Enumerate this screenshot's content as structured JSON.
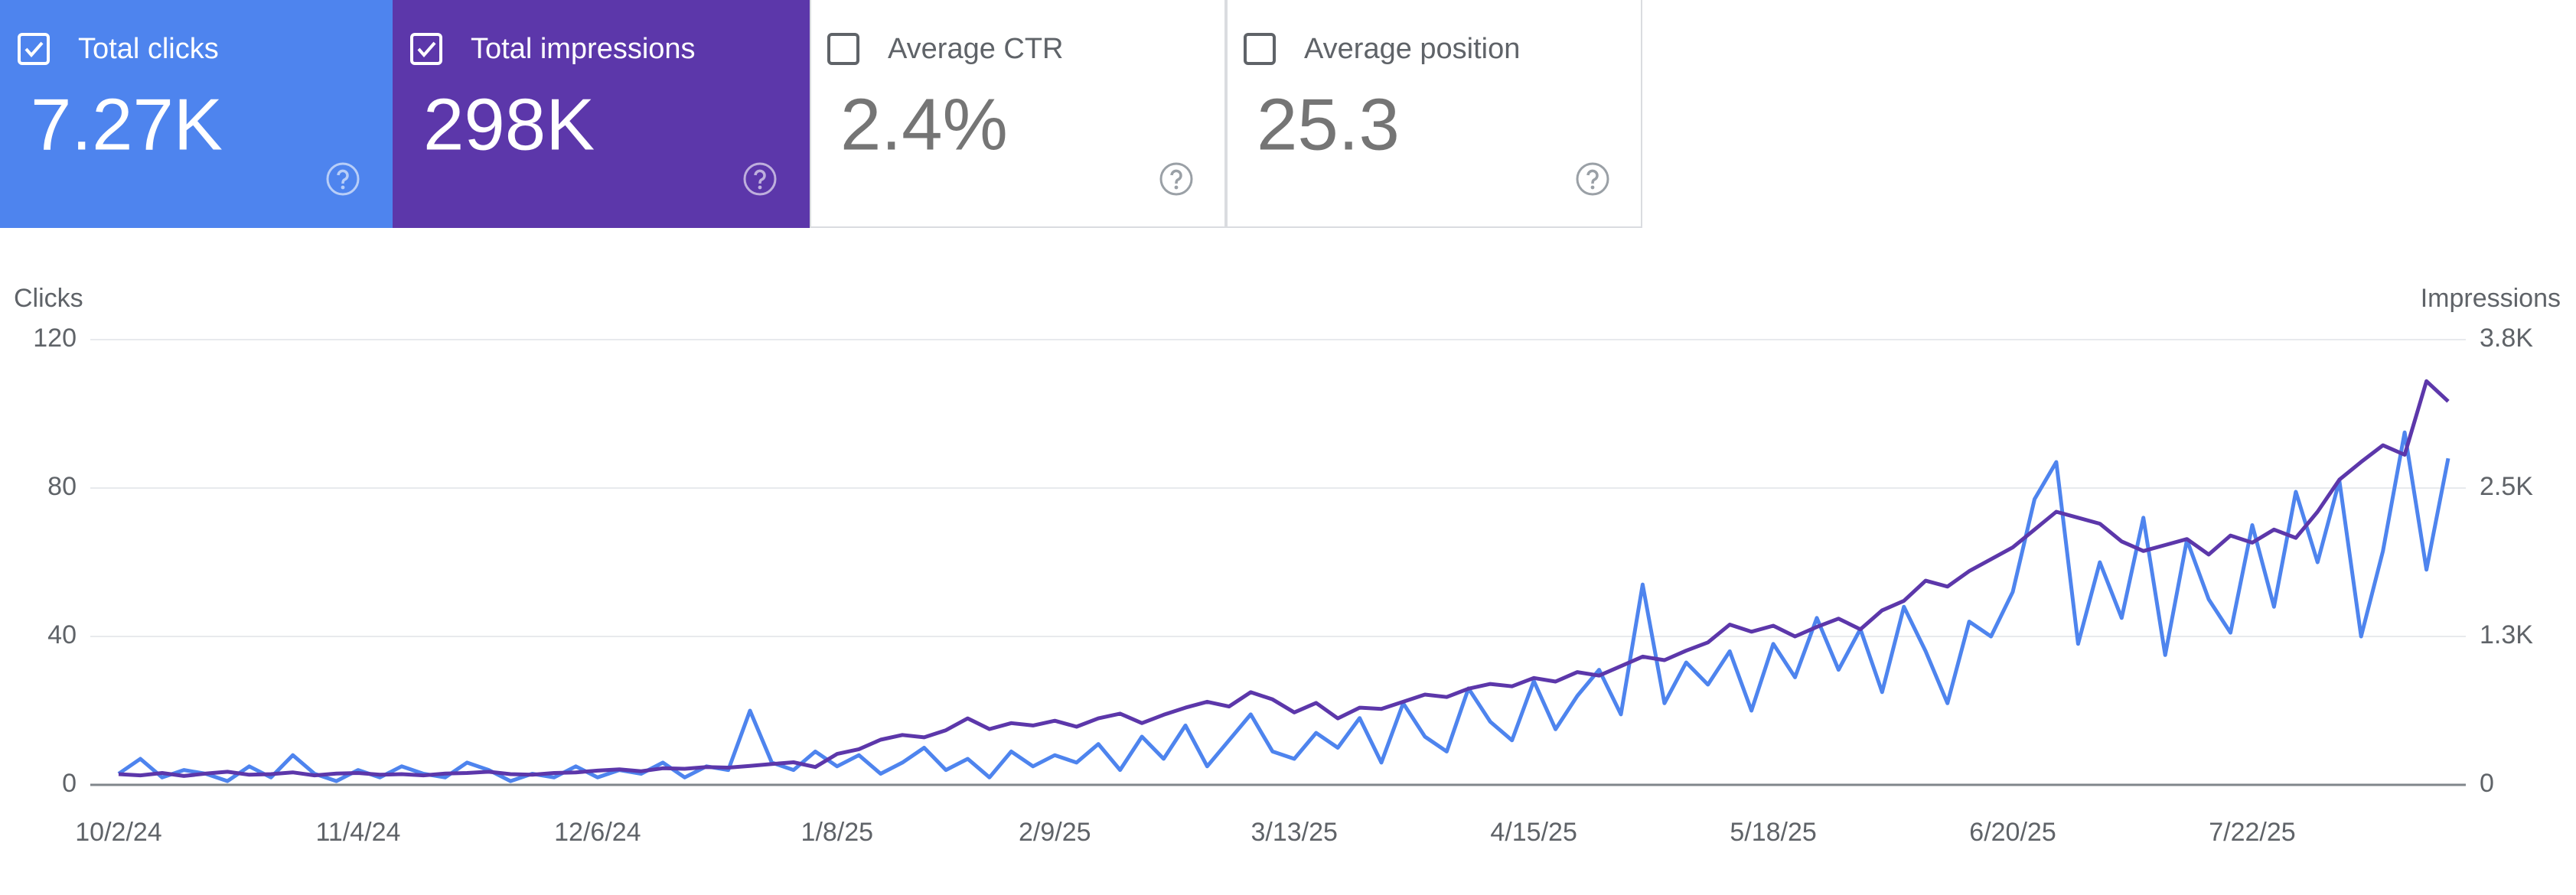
{
  "tiles": [
    {
      "label": "Total clicks",
      "value": "7.27K",
      "checked": true,
      "color": "#4e84ee"
    },
    {
      "label": "Total impressions",
      "value": "298K",
      "checked": true,
      "color": "#5c37aa"
    },
    {
      "label": "Average CTR",
      "value": "2.4%",
      "checked": false,
      "color": "#ffffff"
    },
    {
      "label": "Average position",
      "value": "25.3",
      "checked": false,
      "color": "#ffffff"
    }
  ],
  "chart_data": {
    "type": "line",
    "ylabel": "Clicks",
    "y2label": "Impressions",
    "categories": [
      "10/2/24",
      null,
      null,
      null,
      null,
      null,
      null,
      null,
      null,
      null,
      null,
      "11/4/24",
      null,
      null,
      null,
      null,
      null,
      null,
      null,
      null,
      null,
      null,
      "12/6/24",
      null,
      null,
      null,
      null,
      null,
      null,
      null,
      null,
      null,
      null,
      "1/8/25",
      null,
      null,
      null,
      null,
      null,
      null,
      null,
      null,
      null,
      "2/9/25",
      null,
      null,
      null,
      null,
      null,
      null,
      null,
      null,
      null,
      null,
      "3/13/25",
      null,
      null,
      null,
      null,
      null,
      null,
      null,
      null,
      null,
      null,
      "4/15/25",
      null,
      null,
      null,
      null,
      null,
      null,
      null,
      null,
      null,
      null,
      "5/18/25",
      null,
      null,
      null,
      null,
      null,
      null,
      null,
      null,
      null,
      null,
      "6/20/25",
      null,
      null,
      null,
      null,
      null,
      null,
      null,
      null,
      null,
      null,
      "7/22/25",
      null,
      null,
      null,
      null,
      null,
      null,
      null,
      null,
      null
    ],
    "series": [
      {
        "name": "Clicks",
        "color": "#4e84ee",
        "axis": "y",
        "values": [
          3,
          7,
          2,
          4,
          3,
          1,
          5,
          2,
          8,
          3,
          1,
          4,
          2,
          5,
          3,
          2,
          6,
          4,
          1,
          3,
          2,
          5,
          2,
          4,
          3,
          6,
          2,
          5,
          4,
          20,
          6,
          4,
          9,
          5,
          8,
          3,
          6,
          10,
          4,
          7,
          2,
          9,
          5,
          8,
          6,
          11,
          4,
          13,
          7,
          16,
          5,
          12,
          19,
          9,
          7,
          14,
          10,
          18,
          6,
          22,
          13,
          9,
          26,
          17,
          12,
          28,
          15,
          24,
          31,
          19,
          54,
          22,
          33,
          27,
          36,
          20,
          38,
          29,
          45,
          31,
          42,
          25,
          48,
          36,
          22,
          44,
          40,
          52,
          77,
          87,
          38,
          60,
          45,
          72,
          35,
          66,
          50,
          41,
          70,
          48,
          79,
          60,
          82,
          40,
          63,
          95,
          58,
          88
        ]
      },
      {
        "name": "Impressions",
        "color": "#5c37aa",
        "axis": "y2",
        "values": [
          90,
          80,
          100,
          75,
          95,
          110,
          85,
          90,
          105,
          80,
          95,
          100,
          85,
          90,
          80,
          95,
          100,
          110,
          90,
          85,
          100,
          105,
          120,
          130,
          115,
          140,
          135,
          150,
          145,
          160,
          175,
          190,
          150,
          260,
          300,
          380,
          420,
          400,
          460,
          560,
          470,
          520,
          500,
          540,
          490,
          560,
          600,
          520,
          590,
          650,
          700,
          660,
          780,
          720,
          610,
          690,
          560,
          650,
          640,
          700,
          760,
          740,
          810,
          850,
          830,
          900,
          870,
          950,
          920,
          1000,
          1080,
          1050,
          1130,
          1200,
          1350,
          1290,
          1340,
          1250,
          1330,
          1400,
          1310,
          1470,
          1550,
          1720,
          1670,
          1800,
          1900,
          2000,
          2150,
          2300,
          2250,
          2200,
          2050,
          1970,
          2020,
          2070,
          1940,
          2100,
          2040,
          2150,
          2080,
          2300,
          2570,
          2720,
          2860,
          2780,
          3400,
          3230
        ]
      }
    ],
    "ylim": [
      0,
      120
    ],
    "yticks": [
      0,
      40,
      80,
      120
    ],
    "y2lim": [
      0,
      3750
    ],
    "y2ticks": [
      0,
      {
        "value": 1250,
        "label": "1.3K"
      },
      {
        "value": 2500,
        "label": "2.5K"
      },
      {
        "value": 3750,
        "label": "3.8K"
      }
    ],
    "grid": true
  }
}
